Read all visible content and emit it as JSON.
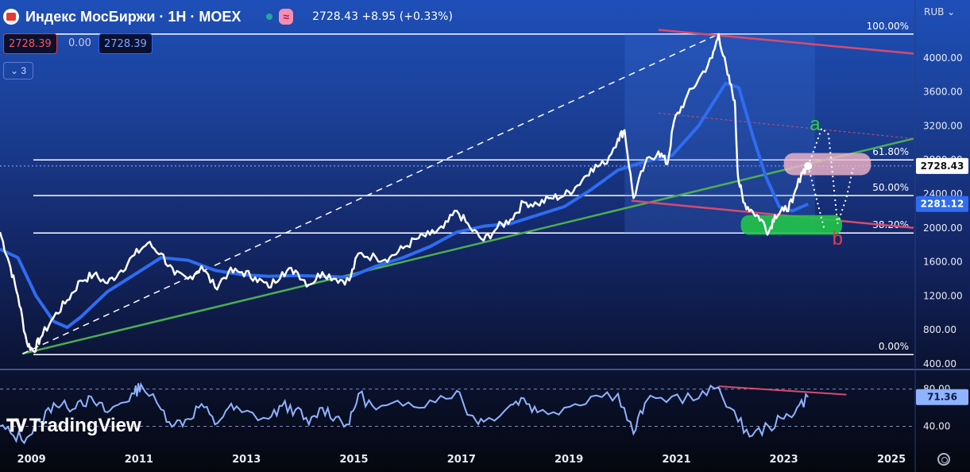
{
  "header": {
    "title": "Индекс МосБиржи · 1Н · MOEX",
    "quote": "2728.43 +8.95 (+0.33%)",
    "approx_badge": "≈"
  },
  "toolbar": {
    "sell_price": "2728.39",
    "spread": "0.00",
    "buy_price": "2728.39",
    "indicators_collapse": "⌄ 3"
  },
  "currency": "RUB ⌄",
  "watermark": "TradingView",
  "colors": {
    "price_line": "#ffffff",
    "moving_average": "#2f6cf0",
    "trend_support": "#4caf50",
    "resistance": "#d84a6e",
    "rsi_line": "#8fb3ff",
    "zone_pink": "#f4b6c8",
    "zone_green": "#21c44a"
  },
  "chart_data": {
    "type": "line",
    "x_axis": {
      "type": "date",
      "range": [
        "2008-06-01",
        "2025-06-01"
      ],
      "tick_labels": [
        "2009",
        "2011",
        "2013",
        "2015",
        "2017",
        "2019",
        "2021",
        "2023",
        "2025"
      ]
    },
    "y_axis": {
      "range": [
        400,
        4400
      ],
      "tick_labels": [
        "400.00",
        "800.00",
        "1200.00",
        "1600.00",
        "2000.00",
        "2400.00",
        "2800.00",
        "3200.00",
        "3600.00",
        "4000.00"
      ]
    },
    "last_price": "2728.43",
    "ma_last": "2281.12",
    "series": [
      {
        "key": "price",
        "points": [
          [
            "2008-06-01",
            1950
          ],
          [
            "2008-08-01",
            1600
          ],
          [
            "2008-10-01",
            1200
          ],
          [
            "2008-12-01",
            650
          ],
          [
            "2009-01-15",
            550
          ],
          [
            "2009-03-01",
            700
          ],
          [
            "2009-06-01",
            950
          ],
          [
            "2009-09-01",
            1150
          ],
          [
            "2009-12-01",
            1380
          ],
          [
            "2010-03-01",
            1450
          ],
          [
            "2010-06-01",
            1350
          ],
          [
            "2010-09-01",
            1500
          ],
          [
            "2010-12-01",
            1680
          ],
          [
            "2011-03-01",
            1820
          ],
          [
            "2011-06-01",
            1700
          ],
          [
            "2011-09-01",
            1450
          ],
          [
            "2011-12-01",
            1400
          ],
          [
            "2012-03-01",
            1550
          ],
          [
            "2012-06-01",
            1300
          ],
          [
            "2012-09-01",
            1480
          ],
          [
            "2012-12-01",
            1480
          ],
          [
            "2013-03-01",
            1420
          ],
          [
            "2013-06-01",
            1300
          ],
          [
            "2013-09-01",
            1480
          ],
          [
            "2013-12-01",
            1500
          ],
          [
            "2014-03-01",
            1330
          ],
          [
            "2014-06-01",
            1480
          ],
          [
            "2014-09-01",
            1400
          ],
          [
            "2014-12-01",
            1380
          ],
          [
            "2015-02-01",
            1700
          ],
          [
            "2015-06-01",
            1650
          ],
          [
            "2015-09-01",
            1650
          ],
          [
            "2015-12-01",
            1760
          ],
          [
            "2016-03-01",
            1870
          ],
          [
            "2016-06-01",
            1920
          ],
          [
            "2016-09-01",
            2000
          ],
          [
            "2016-12-01",
            2200
          ],
          [
            "2017-03-01",
            2000
          ],
          [
            "2017-06-01",
            1850
          ],
          [
            "2017-09-01",
            2000
          ],
          [
            "2017-12-01",
            2100
          ],
          [
            "2018-03-01",
            2300
          ],
          [
            "2018-06-01",
            2280
          ],
          [
            "2018-09-01",
            2350
          ],
          [
            "2018-12-01",
            2380
          ],
          [
            "2019-03-01",
            2500
          ],
          [
            "2019-06-01",
            2700
          ],
          [
            "2019-09-01",
            2750
          ],
          [
            "2019-12-01",
            3050
          ],
          [
            "2020-01-15",
            3150
          ],
          [
            "2020-03-15",
            2350
          ],
          [
            "2020-06-01",
            2750
          ],
          [
            "2020-09-01",
            2900
          ],
          [
            "2020-11-01",
            2750
          ],
          [
            "2020-12-15",
            3250
          ],
          [
            "2021-03-01",
            3500
          ],
          [
            "2021-06-01",
            3750
          ],
          [
            "2021-09-01",
            4000
          ],
          [
            "2021-10-15",
            4280
          ],
          [
            "2021-12-15",
            3800
          ],
          [
            "2022-02-01",
            3500
          ],
          [
            "2022-02-24",
            2600
          ],
          [
            "2022-04-01",
            2300
          ],
          [
            "2022-06-01",
            2200
          ],
          [
            "2022-08-01",
            2100
          ],
          [
            "2022-09-20",
            1950
          ],
          [
            "2022-11-01",
            2150
          ],
          [
            "2023-01-01",
            2200
          ],
          [
            "2023-03-01",
            2300
          ],
          [
            "2023-05-01",
            2650
          ],
          [
            "2023-06-15",
            2728.43
          ]
        ]
      },
      {
        "key": "moving_average",
        "points": [
          [
            "2008-06-01",
            1750
          ],
          [
            "2008-10-01",
            1650
          ],
          [
            "2009-02-01",
            1200
          ],
          [
            "2009-06-01",
            900
          ],
          [
            "2009-09-01",
            830
          ],
          [
            "2009-12-01",
            950
          ],
          [
            "2010-06-01",
            1250
          ],
          [
            "2010-12-01",
            1450
          ],
          [
            "2011-06-01",
            1650
          ],
          [
            "2011-12-01",
            1620
          ],
          [
            "2012-06-01",
            1500
          ],
          [
            "2012-12-01",
            1450
          ],
          [
            "2013-06-01",
            1430
          ],
          [
            "2013-12-01",
            1440
          ],
          [
            "2014-06-01",
            1430
          ],
          [
            "2014-12-01",
            1420
          ],
          [
            "2015-06-01",
            1550
          ],
          [
            "2015-12-01",
            1650
          ],
          [
            "2016-06-01",
            1780
          ],
          [
            "2016-12-01",
            1950
          ],
          [
            "2017-06-01",
            2020
          ],
          [
            "2017-12-01",
            2050
          ],
          [
            "2018-06-01",
            2150
          ],
          [
            "2018-12-01",
            2250
          ],
          [
            "2019-06-01",
            2450
          ],
          [
            "2019-12-01",
            2680
          ],
          [
            "2020-06-01",
            2780
          ],
          [
            "2020-12-01",
            2850
          ],
          [
            "2021-06-01",
            3200
          ],
          [
            "2021-12-01",
            3700
          ],
          [
            "2022-03-01",
            3650
          ],
          [
            "2022-06-01",
            3100
          ],
          [
            "2022-09-01",
            2600
          ],
          [
            "2022-12-01",
            2250
          ],
          [
            "2023-03-01",
            2200
          ],
          [
            "2023-06-15",
            2281.12
          ]
        ]
      }
    ],
    "fibonacci": [
      {
        "label": "100.00%",
        "value": 4280
      },
      {
        "label": "61.80%",
        "value": 2800
      },
      {
        "label": "50.00%",
        "value": 2380
      },
      {
        "label": "38.20%",
        "value": 1940
      },
      {
        "label": "0.00%",
        "value": 510
      }
    ],
    "annotations": [
      {
        "label": "a",
        "x": "2023-08-01",
        "y": 3150
      },
      {
        "label": "b",
        "x": "2024-01-01",
        "y": 1800
      }
    ]
  },
  "rsi_data": {
    "type": "line",
    "y_axis": {
      "range": [
        20,
        95
      ],
      "tick_labels": [
        "40.00",
        "80.00"
      ]
    },
    "last_value": "71.36",
    "points": [
      [
        "2008-06-01",
        40
      ],
      [
        "2008-09-01",
        30
      ],
      [
        "2008-12-01",
        28
      ],
      [
        "2009-03-01",
        45
      ],
      [
        "2009-06-01",
        65
      ],
      [
        "2009-09-01",
        60
      ],
      [
        "2009-12-01",
        68
      ],
      [
        "2010-03-01",
        66
      ],
      [
        "2010-06-01",
        55
      ],
      [
        "2010-09-01",
        65
      ],
      [
        "2010-12-01",
        75
      ],
      [
        "2011-01-15",
        85
      ],
      [
        "2011-06-01",
        58
      ],
      [
        "2011-09-01",
        42
      ],
      [
        "2011-12-01",
        48
      ],
      [
        "2012-03-01",
        64
      ],
      [
        "2012-06-01",
        42
      ],
      [
        "2012-09-01",
        60
      ],
      [
        "2012-12-01",
        55
      ],
      [
        "2013-06-01",
        48
      ],
      [
        "2013-09-01",
        62
      ],
      [
        "2013-12-01",
        58
      ],
      [
        "2014-03-01",
        42
      ],
      [
        "2014-06-01",
        60
      ],
      [
        "2014-09-01",
        50
      ],
      [
        "2014-12-01",
        42
      ],
      [
        "2015-02-01",
        75
      ],
      [
        "2015-06-01",
        58
      ],
      [
        "2015-12-01",
        62
      ],
      [
        "2016-06-01",
        68
      ],
      [
        "2016-12-01",
        78
      ],
      [
        "2017-03-01",
        52
      ],
      [
        "2017-06-01",
        45
      ],
      [
        "2017-12-01",
        63
      ],
      [
        "2018-03-01",
        70
      ],
      [
        "2018-06-01",
        55
      ],
      [
        "2018-12-01",
        60
      ],
      [
        "2019-06-01",
        72
      ],
      [
        "2019-12-01",
        75
      ],
      [
        "2020-03-15",
        32
      ],
      [
        "2020-06-01",
        65
      ],
      [
        "2020-12-01",
        72
      ],
      [
        "2021-06-01",
        70
      ],
      [
        "2021-10-15",
        82
      ],
      [
        "2022-02-24",
        45
      ],
      [
        "2022-06-01",
        30
      ],
      [
        "2022-09-20",
        40
      ],
      [
        "2023-01-01",
        48
      ],
      [
        "2023-04-01",
        60
      ],
      [
        "2023-06-15",
        71.36
      ]
    ]
  }
}
